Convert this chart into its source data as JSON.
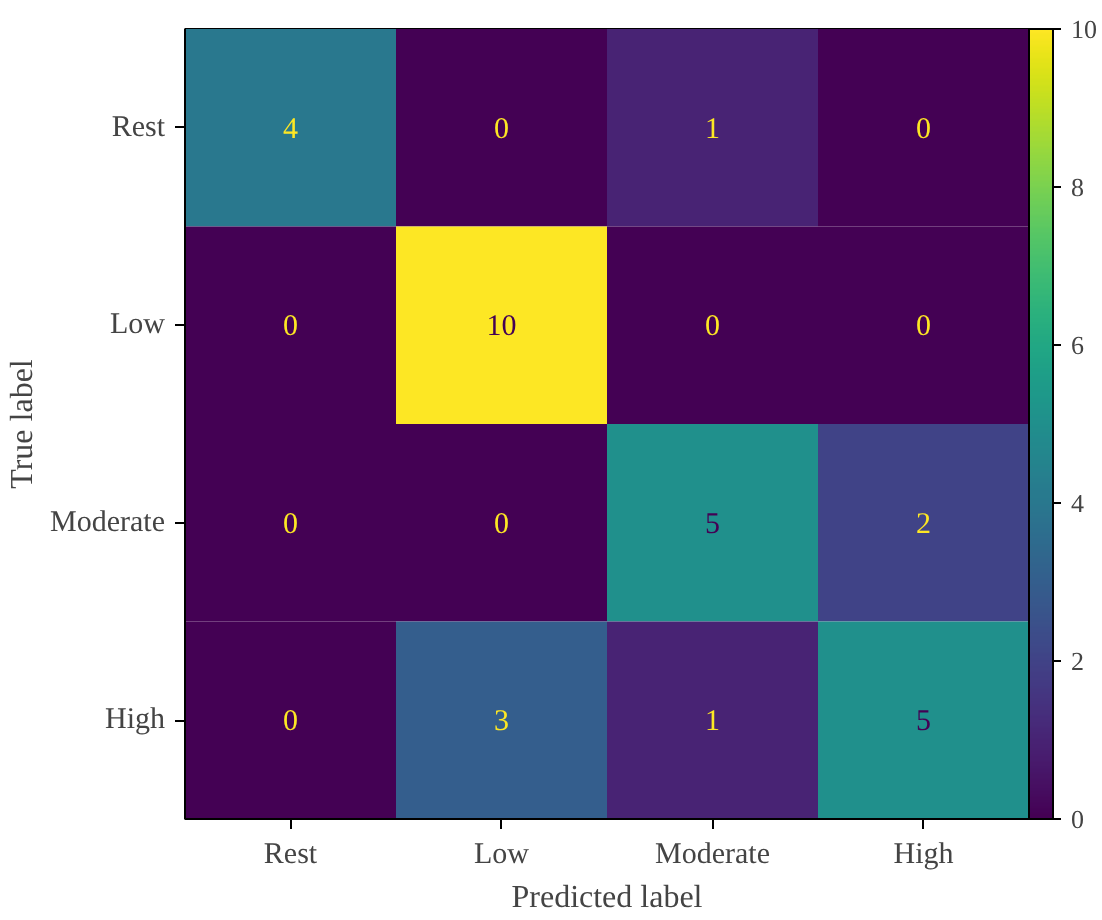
{
  "chart_data": {
    "type": "heatmap",
    "xlabel": "Predicted label",
    "ylabel": "True label",
    "categories": [
      "Rest",
      "Low",
      "Moderate",
      "High"
    ],
    "y_categories": [
      "Rest",
      "Low",
      "Moderate",
      "High"
    ],
    "cells": [
      [
        4,
        0,
        1,
        0
      ],
      [
        0,
        10,
        0,
        0
      ],
      [
        0,
        0,
        5,
        2
      ],
      [
        0,
        3,
        1,
        5
      ]
    ],
    "clim": [
      0,
      10
    ],
    "cticks": [
      0,
      2,
      4,
      6,
      8,
      10
    ],
    "data_labels": true,
    "grid": false
  }
}
